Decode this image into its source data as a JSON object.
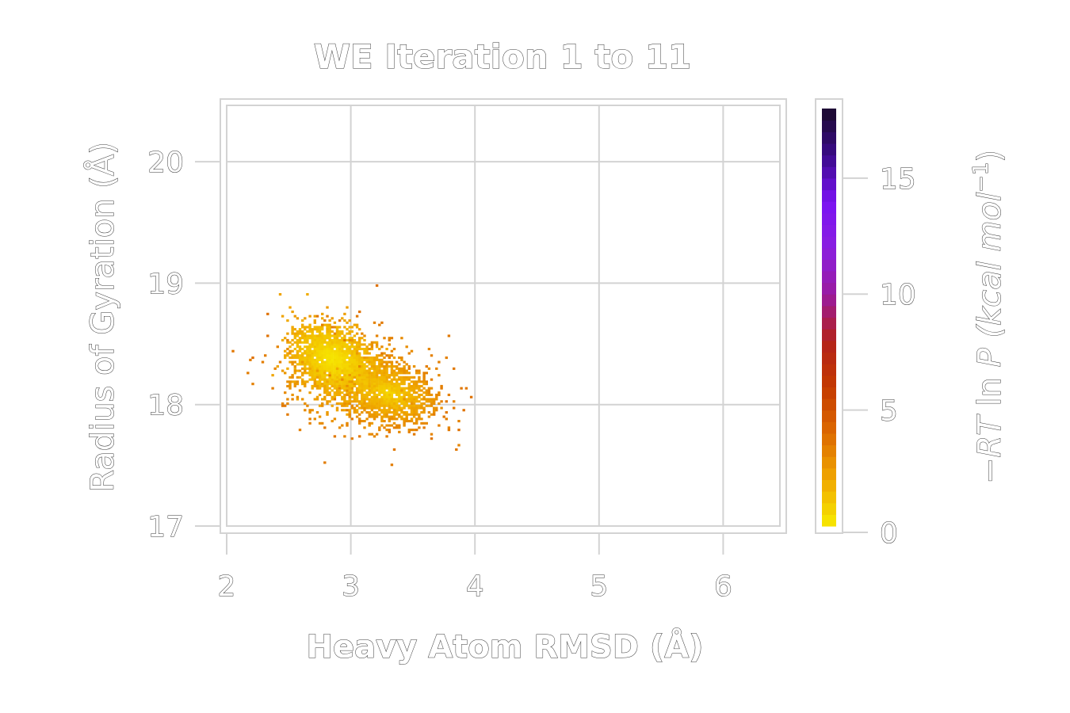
{
  "chart_data": {
    "type": "heatmap",
    "title": "WE Iteration 1 to 11",
    "xlabel": "Heavy Atom RMSD (Å)",
    "ylabel": "Radius of Gyration (Å)",
    "colorbar_label_parts": [
      "−RT",
      " ln ",
      "P",
      " (kcal mol",
      "−1",
      ")"
    ],
    "xlim": [
      2,
      6.5
    ],
    "ylim": [
      17,
      20.5
    ],
    "xticks": [
      2,
      3,
      4,
      5,
      6
    ],
    "yticks": [
      17,
      18,
      19,
      20
    ],
    "colorbar_range": [
      0,
      18
    ],
    "colorbar_ticks": [
      0,
      5,
      10,
      15
    ],
    "colormap": "gnuplot-like (yellow-orange-red-purple-black)",
    "colormap_stops": [
      "#f7ea00",
      "#f0a800",
      "#dd6a00",
      "#c43a00",
      "#b3221a",
      "#9a1aa0",
      "#8a1ee0",
      "#7a12f2",
      "#3a0a8a",
      "#1a0a2a"
    ],
    "grid": true,
    "clusters": [
      {
        "center": [
          2.85,
          18.38
        ],
        "spread": [
          0.14,
          0.12
        ],
        "points": 1600,
        "energy_range": [
          0.3,
          2.2
        ]
      },
      {
        "center": [
          3.3,
          18.1
        ],
        "spread": [
          0.16,
          0.11
        ],
        "points": 1100,
        "energy_range": [
          0.8,
          3.4
        ]
      },
      {
        "center": [
          3.05,
          18.2
        ],
        "spread": [
          0.28,
          0.18
        ],
        "points": 700,
        "energy_range": [
          1.2,
          3.6
        ]
      }
    ],
    "bin_width": [
      0.02,
      0.018
    ]
  }
}
